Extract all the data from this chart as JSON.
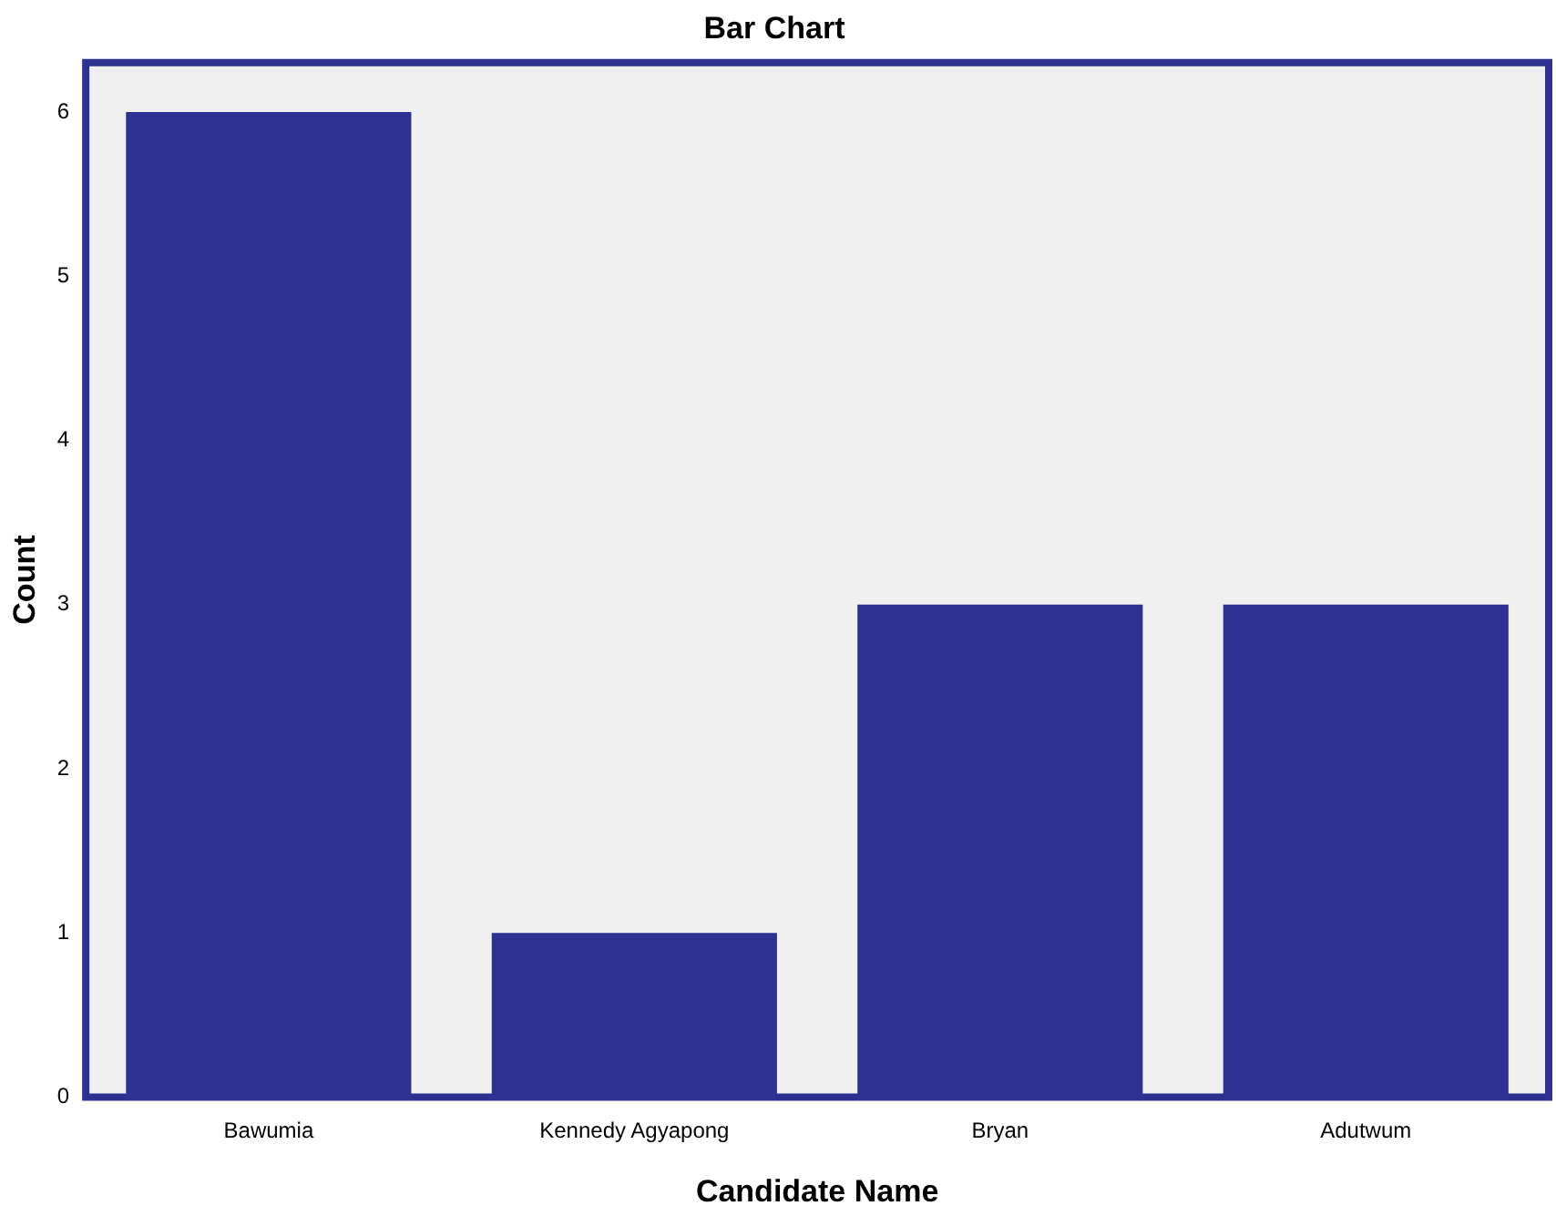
{
  "chart_data": {
    "type": "bar",
    "title": "Bar Chart",
    "xlabel": "Candidate Name",
    "ylabel": "Count",
    "categories": [
      "Bawumia",
      "Kennedy Agyapong",
      "Bryan",
      "Adutwum"
    ],
    "values": [
      6,
      1,
      3,
      3
    ],
    "color": "#2e3192",
    "ylim": [
      0,
      6.3
    ],
    "yticks": [
      0,
      1,
      2,
      3,
      4,
      5,
      6
    ],
    "grid": false,
    "legend": false
  }
}
